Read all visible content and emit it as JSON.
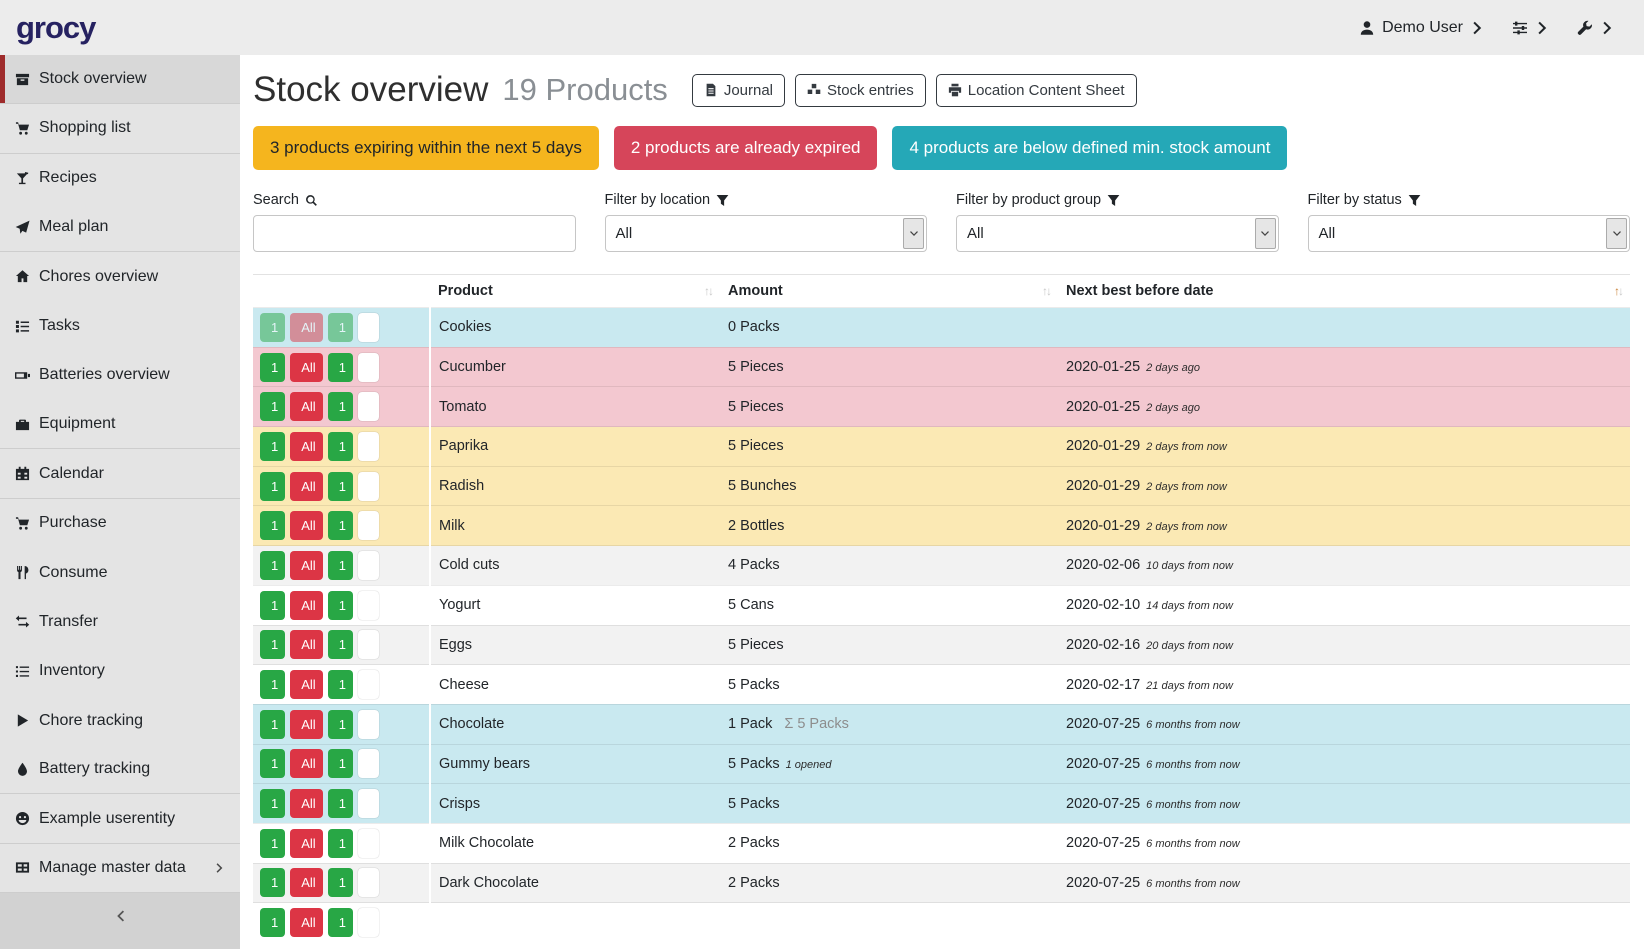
{
  "colors": {
    "accent": "#9e2b2b",
    "logo": "#262261",
    "banner_warning": "#f5b51e",
    "banner_danger": "#d6455a",
    "banner_info": "#25a8b7",
    "row_below_min": "#c9e9f0",
    "row_expired": "#f3c8d0",
    "row_expiring": "#fbe9b4",
    "button_green": "#28a745",
    "button_red": "#dc3545"
  },
  "header": {
    "logo": "grocy",
    "user_label": "Demo User"
  },
  "sidebar": {
    "items": [
      {
        "label": "Stock overview",
        "icon": "box-icon",
        "active": true,
        "divider": true
      },
      {
        "label": "Shopping list",
        "icon": "cart-icon",
        "divider": true
      },
      {
        "label": "Recipes",
        "icon": "cocktail-icon",
        "divider": false
      },
      {
        "label": "Meal plan",
        "icon": "paper-plane-icon",
        "divider": true
      },
      {
        "label": "Chores overview",
        "icon": "home-icon",
        "divider": false
      },
      {
        "label": "Tasks",
        "icon": "tasks-icon",
        "divider": false
      },
      {
        "label": "Batteries overview",
        "icon": "battery-icon",
        "divider": false
      },
      {
        "label": "Equipment",
        "icon": "toolbox-icon",
        "divider": true
      },
      {
        "label": "Calendar",
        "icon": "calendar-icon",
        "divider": true
      },
      {
        "label": "Purchase",
        "icon": "cart-icon",
        "divider": false
      },
      {
        "label": "Consume",
        "icon": "utensils-icon",
        "divider": false
      },
      {
        "label": "Transfer",
        "icon": "exchange-icon",
        "divider": false
      },
      {
        "label": "Inventory",
        "icon": "list-icon",
        "divider": false
      },
      {
        "label": "Chore tracking",
        "icon": "play-icon",
        "divider": false
      },
      {
        "label": "Battery tracking",
        "icon": "drop-icon",
        "divider": true
      },
      {
        "label": "Example userentity",
        "icon": "smiley-icon",
        "divider": true
      },
      {
        "label": "Manage master data",
        "icon": "table-icon",
        "divider": true,
        "chevron": true
      }
    ]
  },
  "page": {
    "title": "Stock overview",
    "subtitle": "19 Products",
    "toolbar": [
      {
        "label": "Journal",
        "icon": "journal-icon"
      },
      {
        "label": "Stock entries",
        "icon": "boxes-icon"
      },
      {
        "label": "Location Content Sheet",
        "icon": "print-icon"
      }
    ]
  },
  "banners": [
    {
      "text": "3 products expiring within the next 5 days",
      "type": "warning"
    },
    {
      "text": "2 products are already expired",
      "type": "danger"
    },
    {
      "text": "4 products are below defined min. stock amount",
      "type": "info"
    }
  ],
  "filters": {
    "search": {
      "label": "Search",
      "value": ""
    },
    "location": {
      "label": "Filter by location",
      "value": "All"
    },
    "product_group": {
      "label": "Filter by product group",
      "value": "All"
    },
    "status": {
      "label": "Filter by status",
      "value": "All"
    }
  },
  "table": {
    "columns": [
      "Product",
      "Amount",
      "Next best before date"
    ],
    "sort": {
      "column": "Next best before date",
      "direction": "asc"
    },
    "row_buttons": {
      "consume_one": "1",
      "consume_all": "All",
      "open_one": "1"
    },
    "rows": [
      {
        "name": "Cookies",
        "amount": "0 Packs",
        "sum": "",
        "note": "",
        "date": "",
        "ago": "",
        "status": "below-min",
        "disabled": true
      },
      {
        "name": "Cucumber",
        "amount": "5 Pieces",
        "sum": "",
        "note": "",
        "date": "2020-01-25",
        "ago": "2 days ago",
        "status": "expired"
      },
      {
        "name": "Tomato",
        "amount": "5 Pieces",
        "sum": "",
        "note": "",
        "date": "2020-01-25",
        "ago": "2 days ago",
        "status": "expired"
      },
      {
        "name": "Paprika",
        "amount": "5 Pieces",
        "sum": "",
        "note": "",
        "date": "2020-01-29",
        "ago": "2 days from now",
        "status": "expiring"
      },
      {
        "name": "Radish",
        "amount": "5 Bunches",
        "sum": "",
        "note": "",
        "date": "2020-01-29",
        "ago": "2 days from now",
        "status": "expiring"
      },
      {
        "name": "Milk",
        "amount": "2 Bottles",
        "sum": "",
        "note": "",
        "date": "2020-01-29",
        "ago": "2 days from now",
        "status": "expiring"
      },
      {
        "name": "Cold cuts",
        "amount": "4 Packs",
        "sum": "",
        "note": "",
        "date": "2020-02-06",
        "ago": "10 days from now",
        "status": ""
      },
      {
        "name": "Yogurt",
        "amount": "5 Cans",
        "sum": "",
        "note": "",
        "date": "2020-02-10",
        "ago": "14 days from now",
        "status": ""
      },
      {
        "name": "Eggs",
        "amount": "5 Pieces",
        "sum": "",
        "note": "",
        "date": "2020-02-16",
        "ago": "20 days from now",
        "status": ""
      },
      {
        "name": "Cheese",
        "amount": "5 Packs",
        "sum": "",
        "note": "",
        "date": "2020-02-17",
        "ago": "21 days from now",
        "status": ""
      },
      {
        "name": "Chocolate",
        "amount": "1 Pack",
        "sum": "5 Packs",
        "note": "",
        "date": "2020-07-25",
        "ago": "6 months from now",
        "status": "below-min"
      },
      {
        "name": "Gummy bears",
        "amount": "5 Packs",
        "sum": "",
        "note": "1 opened",
        "date": "2020-07-25",
        "ago": "6 months from now",
        "status": "below-min"
      },
      {
        "name": "Crisps",
        "amount": "5 Packs",
        "sum": "",
        "note": "",
        "date": "2020-07-25",
        "ago": "6 months from now",
        "status": "below-min"
      },
      {
        "name": "Milk Chocolate",
        "amount": "2 Packs",
        "sum": "",
        "note": "",
        "date": "2020-07-25",
        "ago": "6 months from now",
        "status": ""
      },
      {
        "name": "Dark Chocolate",
        "amount": "2 Packs",
        "sum": "",
        "note": "",
        "date": "2020-07-25",
        "ago": "6 months from now",
        "status": ""
      },
      {
        "name": "",
        "amount": "",
        "sum": "",
        "note": "",
        "date": "",
        "ago": "",
        "status": "",
        "partial": true
      }
    ]
  }
}
